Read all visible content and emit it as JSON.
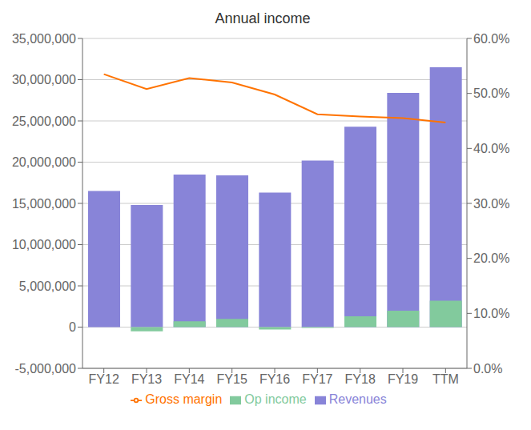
{
  "chart_data": {
    "type": "bar",
    "title": "Annual income",
    "categories": [
      "FY12",
      "FY13",
      "FY14",
      "FY15",
      "FY16",
      "FY17",
      "FY18",
      "FY19",
      "TTM"
    ],
    "series": [
      {
        "name": "Revenues",
        "type": "bar",
        "color": "#8884d8",
        "values": [
          16500000,
          14800000,
          18500000,
          18400000,
          16300000,
          20200000,
          24300000,
          28400000,
          31500000
        ]
      },
      {
        "name": "Op income",
        "type": "bar",
        "color": "#82ca9d",
        "values": [
          0,
          -500000,
          700000,
          1000000,
          -300000,
          -100000,
          1300000,
          2000000,
          3200000
        ]
      },
      {
        "name": "Gross margin",
        "type": "line",
        "axis": "y2",
        "color": "#ff7300",
        "values": [
          0.535,
          0.508,
          0.528,
          0.52,
          0.498,
          0.462,
          0.458,
          0.455,
          0.447
        ]
      }
    ],
    "ylim": [
      -5000000,
      35000000
    ],
    "yticks": [
      {
        "value": -5000000,
        "label": "-5,000,000"
      },
      0,
      {
        "value": 5000000,
        "label": "5,000,000"
      },
      {
        "value": 10000000,
        "label": "10,000,000"
      },
      {
        "value": 15000000,
        "label": "15,000,000"
      },
      {
        "value": 20000000,
        "label": "20,000,000"
      },
      {
        "value": 25000000,
        "label": "25,000,000"
      },
      {
        "value": 30000000,
        "label": "30,000,000"
      },
      {
        "value": 35000000,
        "label": "35,000,000"
      }
    ],
    "y2lim": [
      0.0,
      0.6
    ],
    "y2ticks": [
      {
        "value": 0.0,
        "label": "0.0%"
      },
      {
        "value": 0.1,
        "label": "10.0%"
      },
      {
        "value": 0.2,
        "label": "20.0%"
      },
      {
        "value": 0.3,
        "label": "30.0%"
      },
      {
        "value": 0.4,
        "label": "40.0%"
      },
      {
        "value": 0.5,
        "label": "50.0%"
      },
      {
        "value": 0.6,
        "label": "60.0%"
      }
    ],
    "grid": true,
    "legend": "bottom"
  }
}
